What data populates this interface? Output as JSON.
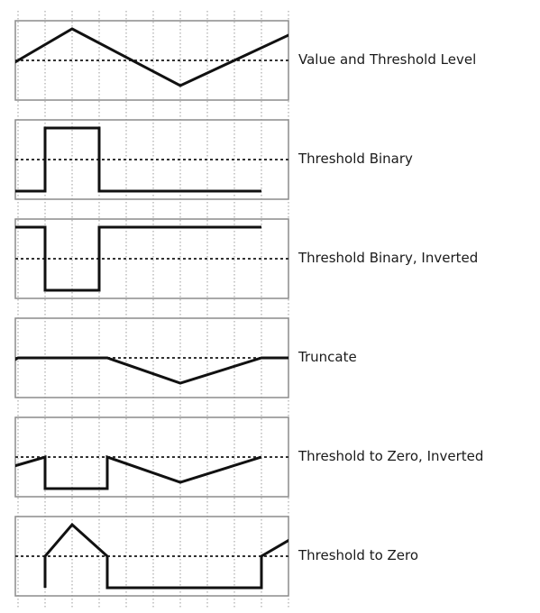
{
  "chart_data": {
    "type": "diagram",
    "panels": [
      {
        "label": "Value and Threshold Level",
        "threshold": 0.5,
        "signal": [
          [
            -1,
            0.25
          ],
          [
            0.0,
            0.5
          ],
          [
            2.0,
            1.0
          ],
          [
            6.0,
            0.1
          ],
          [
            10.0,
            0.9
          ],
          [
            11,
            1.0
          ]
        ]
      },
      {
        "label": "Threshold Binary",
        "threshold": 0.5,
        "signal": [
          [
            -1,
            0.0
          ],
          [
            1.0,
            0.0
          ],
          [
            1.0,
            1.0
          ],
          [
            3.0,
            1.0
          ],
          [
            3.0,
            0.0
          ],
          [
            9.0,
            0.0
          ]
        ]
      },
      {
        "label": "Threshold Binary, Inverted",
        "threshold": 0.5,
        "signal": [
          [
            -1,
            1.0
          ],
          [
            1.0,
            1.0
          ],
          [
            1.0,
            0.0
          ],
          [
            3.0,
            0.0
          ],
          [
            3.0,
            1.0
          ],
          [
            9.0,
            1.0
          ]
        ]
      },
      {
        "label": "Truncate",
        "threshold": 0.5,
        "signal": [
          [
            -1,
            0.25
          ],
          [
            0.0,
            0.5
          ],
          [
            3.3,
            0.5
          ],
          [
            6.0,
            0.1
          ],
          [
            9.0,
            0.5
          ],
          [
            10,
            0.5
          ]
        ]
      },
      {
        "label": "Threshold to Zero, Inverted",
        "threshold": 0.5,
        "signal": [
          [
            -1,
            0.25
          ],
          [
            1.0,
            0.5
          ],
          [
            1.0,
            0.0
          ],
          [
            3.3,
            0.0
          ],
          [
            3.3,
            0.5
          ],
          [
            6.0,
            0.1
          ],
          [
            9.0,
            0.5
          ]
        ]
      },
      {
        "label": "Threshold to Zero",
        "threshold": 0.5,
        "signal": [
          [
            1.0,
            0.0
          ],
          [
            1.0,
            0.5
          ],
          [
            2.0,
            1.0
          ],
          [
            3.3,
            0.5
          ],
          [
            3.3,
            0.0
          ],
          [
            9.0,
            0.0
          ],
          [
            9.0,
            0.5
          ],
          [
            11,
            1.0
          ]
        ]
      }
    ]
  }
}
